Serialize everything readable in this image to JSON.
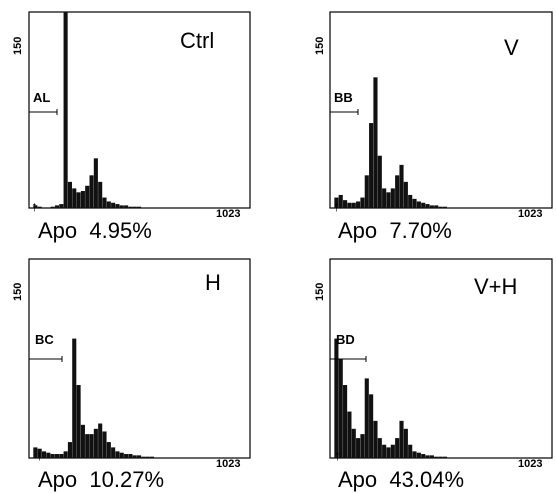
{
  "chart_data": [
    {
      "type": "area",
      "title": "Ctrl",
      "ylim": [
        0,
        150
      ],
      "y_max_label": "150",
      "x_max_label": "1023",
      "region_marker": "AL",
      "apo_label": "Apo",
      "apo_percent": "4.95%",
      "x": [
        0,
        20,
        40,
        60,
        80,
        100,
        120,
        140,
        160,
        180,
        200,
        220,
        240,
        260,
        280,
        300,
        320,
        340,
        360,
        380,
        400,
        420,
        440,
        460,
        480,
        500,
        520,
        540,
        560,
        580,
        600,
        700,
        800,
        900,
        1023
      ],
      "values": [
        0,
        2,
        1,
        0,
        0,
        1,
        2,
        3,
        150,
        20,
        15,
        12,
        13,
        17,
        25,
        38,
        20,
        8,
        5,
        4,
        3,
        2,
        2,
        1,
        1,
        1,
        0,
        0,
        0,
        0,
        0,
        0,
        0,
        0,
        0
      ]
    },
    {
      "type": "area",
      "title": "V",
      "ylim": [
        0,
        150
      ],
      "y_max_label": "150",
      "x_max_label": "1023",
      "region_marker": "BB",
      "apo_label": "Apo",
      "apo_percent": "7.70%",
      "x": [
        0,
        20,
        40,
        60,
        80,
        100,
        120,
        140,
        160,
        180,
        200,
        220,
        240,
        260,
        280,
        300,
        320,
        340,
        360,
        380,
        400,
        420,
        440,
        460,
        480,
        500,
        520,
        540,
        560,
        580,
        600,
        700,
        800,
        900,
        1023
      ],
      "values": [
        0,
        8,
        10,
        6,
        4,
        4,
        5,
        8,
        25,
        65,
        100,
        40,
        15,
        12,
        15,
        25,
        33,
        20,
        10,
        7,
        5,
        4,
        3,
        2,
        2,
        1,
        1,
        0,
        0,
        0,
        0,
        0,
        0,
        0,
        0
      ]
    },
    {
      "type": "area",
      "title": "H",
      "ylim": [
        0,
        150
      ],
      "y_max_label": "150",
      "x_max_label": "1023",
      "region_marker": "BC",
      "apo_label": "Apo",
      "apo_percent": "10.27%",
      "x": [
        0,
        20,
        40,
        60,
        80,
        100,
        120,
        140,
        160,
        180,
        200,
        220,
        240,
        260,
        280,
        300,
        320,
        340,
        360,
        380,
        400,
        420,
        440,
        460,
        480,
        500,
        520,
        540,
        560,
        580,
        600,
        700,
        800,
        900,
        1023
      ],
      "values": [
        0,
        8,
        7,
        5,
        4,
        3,
        3,
        3,
        5,
        12,
        90,
        55,
        25,
        18,
        18,
        22,
        26,
        20,
        12,
        8,
        5,
        4,
        3,
        3,
        2,
        2,
        1,
        1,
        1,
        0,
        0,
        0,
        0,
        0,
        0
      ]
    },
    {
      "type": "area",
      "title": "V+H",
      "ylim": [
        0,
        150
      ],
      "y_max_label": "150",
      "x_max_label": "1023",
      "region_marker": "BD",
      "apo_label": "Apo",
      "apo_percent": "43.04%",
      "x": [
        0,
        20,
        40,
        60,
        80,
        100,
        120,
        140,
        160,
        180,
        200,
        220,
        240,
        260,
        280,
        300,
        320,
        340,
        360,
        380,
        400,
        420,
        440,
        460,
        480,
        500,
        520,
        540,
        560,
        580,
        600,
        700,
        800,
        900,
        1023
      ],
      "values": [
        0,
        90,
        75,
        55,
        35,
        22,
        15,
        18,
        60,
        48,
        28,
        15,
        10,
        8,
        10,
        15,
        28,
        22,
        10,
        5,
        4,
        3,
        2,
        2,
        1,
        1,
        1,
        0,
        0,
        0,
        0,
        0,
        0,
        0,
        0
      ]
    }
  ]
}
